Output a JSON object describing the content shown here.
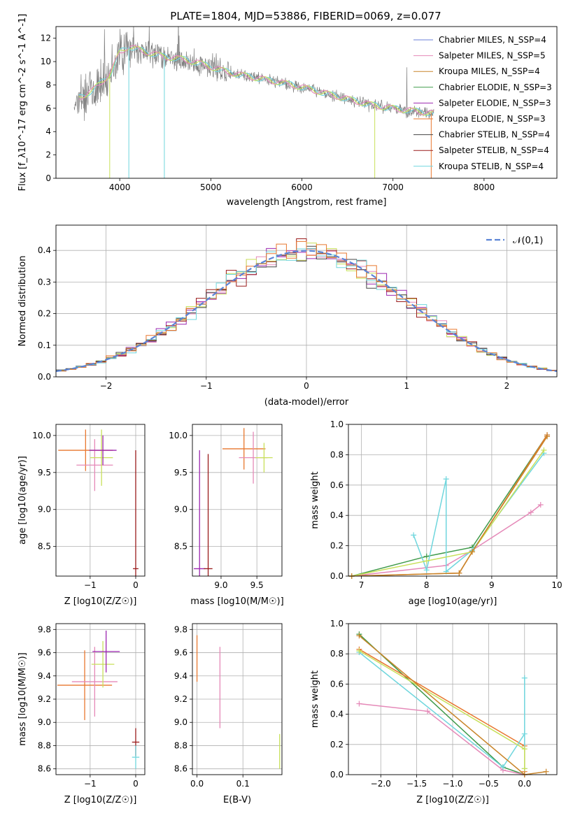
{
  "figure_title": "PLATE=1804, MJD=53886, FIBERID=0069, z=0.077",
  "colors": {
    "data": "#808080",
    "chabrier_miles": "#6a7fd8",
    "salpeter_miles": "#e589b8",
    "kroupa_miles": "#c9852a",
    "chabrier_elodie": "#3f9a4a",
    "salpeter_elodie": "#9c27b0",
    "kroupa_elodie": "#e8772e",
    "chabrier_stelib": "#444444",
    "salpeter_stelib": "#9a1c1c",
    "kroupa_stelib": "#6fd6dd",
    "elodie_yellow": "#c8e05a",
    "gaussian": "#5b84d6",
    "grid": "#b0b0b0"
  },
  "chart_data": [
    {
      "type": "line",
      "title": "PLATE=1804, MJD=53886, FIBERID=0069, z=0.077",
      "xlabel": "wavelength [Angstrom, rest frame]",
      "ylabel": "Flux [f_λ10^-17 erg cm^-2 s^-1 A^-1]",
      "xlim": [
        3300,
        8800
      ],
      "ylim": [
        0,
        13
      ],
      "xticks": [
        "4000",
        "5000",
        "6000",
        "7000",
        "8000"
      ],
      "yticks": [
        "0",
        "2",
        "4",
        "6",
        "8",
        "10",
        "12"
      ],
      "grid": false,
      "legend_position": "top-right",
      "continuum": {
        "x": [
          3500,
          3700,
          3900,
          4000,
          4100,
          4300,
          4500,
          4700,
          4900,
          5100,
          5300,
          5500,
          5700,
          5900,
          6100,
          6300,
          6500,
          6700,
          6900,
          7100,
          7300,
          7500,
          7700,
          7900,
          8100,
          8300,
          8500,
          8700
        ],
        "y": [
          6.7,
          7.5,
          9.0,
          10.8,
          11.3,
          10.8,
          10.4,
          10.2,
          9.8,
          9.3,
          8.9,
          8.6,
          8.3,
          8.0,
          7.6,
          7.2,
          6.8,
          6.4,
          6.1,
          5.9,
          5.7,
          5.5,
          5.3,
          5.1,
          4.9,
          4.7,
          4.6,
          4.4
        ]
      },
      "series": [
        {
          "name": "Chabrier MILES, N_SSP=4"
        },
        {
          "name": "Salpeter MILES, N_SSP=5"
        },
        {
          "name": "Kroupa MILES, N_SSP=4"
        },
        {
          "name": "Chabrier ELODIE, N_SSP=3"
        },
        {
          "name": "Salpeter ELODIE, N_SSP=3"
        },
        {
          "name": "Kroupa ELODIE, N_SSP=3"
        },
        {
          "name": "Chabrier STELIB, N_SSP=4"
        },
        {
          "name": "Salpeter STELIB, N_SSP=4"
        },
        {
          "name": "Kroupa STELIB, N_SSP=4"
        }
      ]
    },
    {
      "type": "line",
      "xlabel": "(data-model)/error",
      "ylabel": "Normed distribution",
      "xlim": [
        -2.5,
        2.5
      ],
      "ylim": [
        0,
        0.48
      ],
      "xticks": [
        "−2",
        "−1",
        "0",
        "1",
        "2"
      ],
      "yticks": [
        "0.0",
        "0.1",
        "0.2",
        "0.3",
        "0.4"
      ],
      "grid": true,
      "legend_position": "top-right",
      "legend": [
        "𝒩(0,1)"
      ],
      "bin_width": 0.1
    },
    {
      "type": "scatter",
      "xlabel": "Z [log10(Z/Z☉)]",
      "ylabel": "age  [log10(age/yr)]",
      "xlim": [
        -1.75,
        0.2
      ],
      "ylim": [
        8.1,
        10.15
      ],
      "xticks": [
        "−1",
        "0"
      ],
      "yticks": [
        "8.5",
        "9.0",
        "9.5",
        "10.0"
      ],
      "grid": true,
      "points": [
        {
          "x": -1.1,
          "y": 9.8,
          "xerr": 0.6,
          "yerr": 0.28
        },
        {
          "x": -0.9,
          "y": 9.6,
          "xerr": 0.4,
          "yerr": 0.35
        },
        {
          "x": -0.75,
          "y": 9.7,
          "xerr": 0.25,
          "yerr": 0.38
        },
        {
          "x": -0.72,
          "y": 9.8,
          "xerr": 0.3,
          "yerr": 0.2
        },
        {
          "x": 0.0,
          "y": 8.2,
          "xerr": 0.06,
          "yerr": 1.6
        }
      ]
    },
    {
      "type": "scatter",
      "xlabel": "mass [log10(M/M☉)]",
      "ylabel": "",
      "xlim": [
        8.6,
        9.85
      ],
      "ylim": [
        8.1,
        10.15
      ],
      "xticks": [
        "9.0",
        "9.5"
      ],
      "yticks": [
        "8.5",
        "9.0",
        "9.5",
        "10.0"
      ],
      "grid": true,
      "points": [
        {
          "x": 9.32,
          "y": 9.82,
          "xerr": 0.3,
          "yerr": 0.28
        },
        {
          "x": 9.45,
          "y": 9.7,
          "xerr": 0.2,
          "yerr": 0.35
        },
        {
          "x": 9.6,
          "y": 9.7,
          "xerr": 0.12,
          "yerr": 0.2
        },
        {
          "x": 8.7,
          "y": 8.2,
          "xerr": 0.08,
          "yerr": 1.6
        },
        {
          "x": 8.82,
          "y": 8.2,
          "xerr": 0.06,
          "yerr": 1.55
        }
      ]
    },
    {
      "type": "line",
      "xlabel": "age  [log10(age/yr)]",
      "ylabel": "mass weight",
      "xlim": [
        6.8,
        10
      ],
      "ylim": [
        0,
        1
      ],
      "xticks": [
        "7",
        "8",
        "9",
        "10"
      ],
      "yticks": [
        "0.0",
        "0.2",
        "0.4",
        "0.6",
        "0.8",
        "1.0"
      ],
      "grid": true,
      "series": [
        {
          "x": [
            6.85,
            8.0,
            8.7,
            9.85
          ],
          "y": [
            0.0,
            0.13,
            0.19,
            0.93
          ]
        },
        {
          "x": [
            6.85,
            8.3,
            8.7,
            9.6,
            9.75
          ],
          "y": [
            0.0,
            0.07,
            0.17,
            0.42,
            0.47
          ]
        },
        {
          "x": [
            6.85,
            8.5,
            8.7,
            9.85
          ],
          "y": [
            0.0,
            0.02,
            0.16,
            0.93
          ]
        },
        {
          "x": [
            7.8,
            8.0,
            8.3,
            8.3,
            8.7,
            9.8
          ],
          "y": [
            0.27,
            0.04,
            0.64,
            0.03,
            0.17,
            0.81
          ]
        },
        {
          "x": [
            6.85,
            8.0,
            8.7,
            9.8
          ],
          "y": [
            0.0,
            0.1,
            0.16,
            0.83
          ]
        },
        {
          "x": [
            6.85,
            8.5,
            8.7,
            9.85
          ],
          "y": [
            0.0,
            0.02,
            0.16,
            0.92
          ]
        }
      ]
    },
    {
      "type": "scatter",
      "xlabel": "Z [log10(Z/Z☉)]",
      "ylabel": "mass [log10(M/M☉)]",
      "xlim": [
        -1.75,
        0.2
      ],
      "ylim": [
        8.55,
        9.85
      ],
      "xticks": [
        "−1",
        "0"
      ],
      "yticks": [
        "8.6",
        "8.8",
        "9.0",
        "9.2",
        "9.4",
        "9.6",
        "9.8"
      ],
      "grid": true,
      "points": [
        {
          "x": -1.12,
          "y": 9.32,
          "xerr": 0.6,
          "yerr": 0.3
        },
        {
          "x": -0.9,
          "y": 9.35,
          "xerr": 0.5,
          "yerr": 0.3
        },
        {
          "x": -0.72,
          "y": 9.5,
          "xerr": 0.25,
          "yerr": 0.2
        },
        {
          "x": -0.65,
          "y": 9.61,
          "xerr": 0.3,
          "yerr": 0.18
        },
        {
          "x": 0.0,
          "y": 8.83,
          "xerr": 0.08,
          "yerr": 0.12
        },
        {
          "x": 0.0,
          "y": 8.7,
          "xerr": 0.08,
          "yerr": 0.1
        }
      ]
    },
    {
      "type": "scatter",
      "xlabel": "E(B-V)",
      "ylabel": "",
      "xlim": [
        -0.01,
        0.185
      ],
      "ylim": [
        8.55,
        9.85
      ],
      "xticks": [
        "0.0",
        "0.1"
      ],
      "yticks": [
        "8.6",
        "8.8",
        "9.0",
        "9.2",
        "9.4",
        "9.6",
        "9.8"
      ],
      "grid": true,
      "points": [
        {
          "x": 0.0,
          "y": 9.55,
          "yerr": 0.2
        },
        {
          "x": 0.05,
          "y": 9.3,
          "yerr": 0.35
        },
        {
          "x": 0.18,
          "y": 8.75,
          "yerr": 0.15
        }
      ]
    },
    {
      "type": "line",
      "xlabel": "Z [log10(Z/Z☉)]",
      "ylabel": "mass weight",
      "xlim": [
        -2.45,
        0.45
      ],
      "ylim": [
        0,
        1
      ],
      "xticks": [
        "−2.0",
        "−1.5",
        "−1.0",
        "−0.5",
        "0.0"
      ],
      "yticks": [
        "0.0",
        "0.2",
        "0.4",
        "0.6",
        "0.8",
        "1.0"
      ],
      "grid": true,
      "series": [
        {
          "x": [
            -2.3,
            -0.3,
            0.0
          ],
          "y": [
            0.93,
            0.05,
            0.0
          ]
        },
        {
          "x": [
            -2.3,
            -1.35,
            -0.3,
            0.0
          ],
          "y": [
            0.47,
            0.42,
            0.03,
            0.0
          ]
        },
        {
          "x": [
            -2.3,
            0.0,
            0.0
          ],
          "y": [
            0.83,
            0.19,
            0.02
          ]
        },
        {
          "x": [
            -2.3,
            -0.3,
            0.0,
            0.0,
            0.0
          ],
          "y": [
            0.81,
            0.05,
            0.27,
            0.64,
            0.04
          ]
        },
        {
          "x": [
            -2.3,
            0.0,
            0.0
          ],
          "y": [
            0.82,
            0.17,
            0.04
          ]
        },
        {
          "x": [
            -2.3,
            0.0,
            0.3
          ],
          "y": [
            0.92,
            0.0,
            0.02
          ]
        }
      ]
    }
  ]
}
